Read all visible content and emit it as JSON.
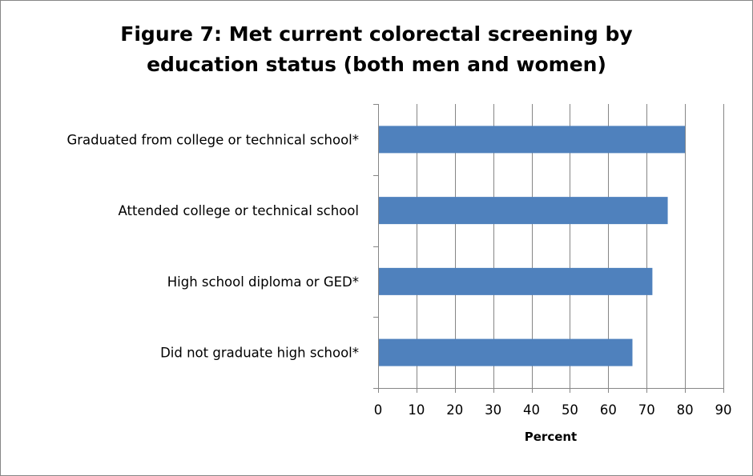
{
  "chart_data": {
    "type": "bar",
    "orientation": "horizontal",
    "title_lines": [
      "Figure 7:  Met current colorectal screening by",
      "education status (both men and women)"
    ],
    "xlabel": "Percent",
    "ylabel": "",
    "xlim": [
      0,
      90
    ],
    "ticks": [
      0,
      10,
      20,
      30,
      40,
      50,
      60,
      70,
      80,
      90
    ],
    "categories": [
      "Graduated from college or technical school*",
      "Attended college or technical school",
      "High school diploma or GED*",
      "Did not graduate high school*"
    ],
    "values": [
      80,
      75.5,
      71.5,
      66.3
    ],
    "bar_color": "#4F81BD",
    "grid": true,
    "legend": "none"
  }
}
